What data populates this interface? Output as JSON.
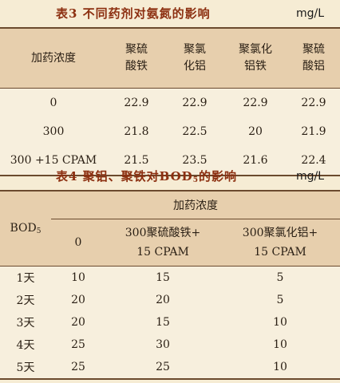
{
  "table3": {
    "caption": "表3  不同药剂对氨氮的影响",
    "unit": "mg/L",
    "headers": [
      "加药浓度",
      "聚硫酸铁",
      "聚氯化铝",
      "聚氯化铝铁",
      "聚硫酸铝"
    ],
    "rows": [
      [
        "0",
        "22.9",
        "22.9",
        "22.9",
        "22.9"
      ],
      [
        "300",
        "21.8",
        "22.5",
        "20",
        "21.9"
      ],
      [
        "300 +15 CPAM",
        "21.5",
        "23.5",
        "21.6",
        "22.4"
      ]
    ]
  },
  "table4": {
    "caption_main": "表4  聚铝、聚铁对BOD",
    "caption_sub": "5",
    "caption_end": "的影响",
    "unit": "mg/L",
    "row_header_main": "BOD",
    "row_header_sub": "5",
    "group_header": "加药浓度",
    "col_headers": [
      "0",
      "300聚硫酸铁+15 CPAM",
      "300聚氯化铝+15 CPAM"
    ],
    "rows": [
      [
        "1天",
        "10",
        "15",
        "5"
      ],
      [
        "2天",
        "20",
        "20",
        "5"
      ],
      [
        "3天",
        "20",
        "15",
        "10"
      ],
      [
        "4天",
        "25",
        "30",
        "10"
      ],
      [
        "5天",
        "25",
        "25",
        "10"
      ]
    ]
  }
}
